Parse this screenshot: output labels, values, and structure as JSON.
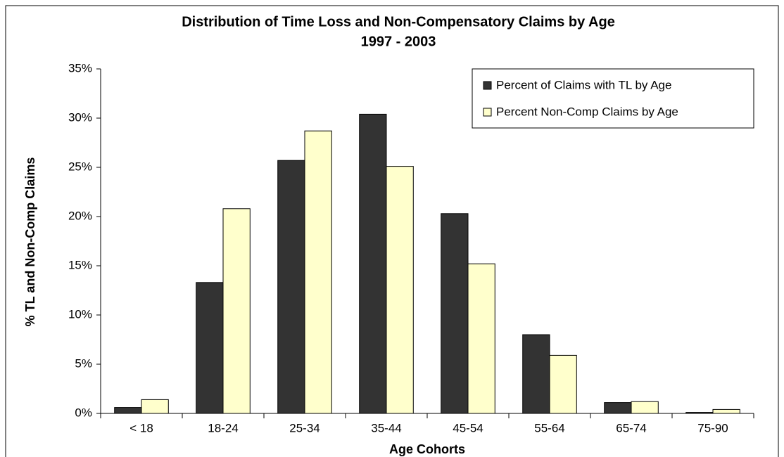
{
  "chart_data": {
    "type": "bar",
    "title": "Distribution of Time Loss and Non-Compensatory Claims by Age",
    "subtitle": "1997 - 2003",
    "x_label": "Age Cohorts",
    "y_label": "% TL and Non-Comp Claims",
    "categories": [
      "< 18",
      "18-24",
      "25-34",
      "35-44",
      "45-54",
      "55-64",
      "65-74",
      "75-90"
    ],
    "series": [
      {
        "name": "Percent of Claims with TL by Age",
        "color": "#333333",
        "values": [
          0.6,
          13.3,
          25.7,
          30.4,
          20.3,
          8.0,
          1.1,
          0.1
        ]
      },
      {
        "name": "Percent Non-Comp Claims by Age",
        "color": "#ffffcc",
        "values": [
          1.4,
          20.8,
          28.7,
          25.1,
          15.2,
          5.9,
          1.2,
          0.4
        ]
      }
    ],
    "ylim": [
      0,
      35
    ],
    "yticks": [
      {
        "value": 0,
        "label": "0%"
      },
      {
        "value": 5,
        "label": "5%"
      },
      {
        "value": 10,
        "label": "10%"
      },
      {
        "value": 15,
        "label": "15%"
      },
      {
        "value": 20,
        "label": "20%"
      },
      {
        "value": 25,
        "label": "25%"
      },
      {
        "value": 30,
        "label": "30%"
      },
      {
        "value": 35,
        "label": "35%"
      }
    ],
    "grid": false,
    "legend": "top-right"
  }
}
